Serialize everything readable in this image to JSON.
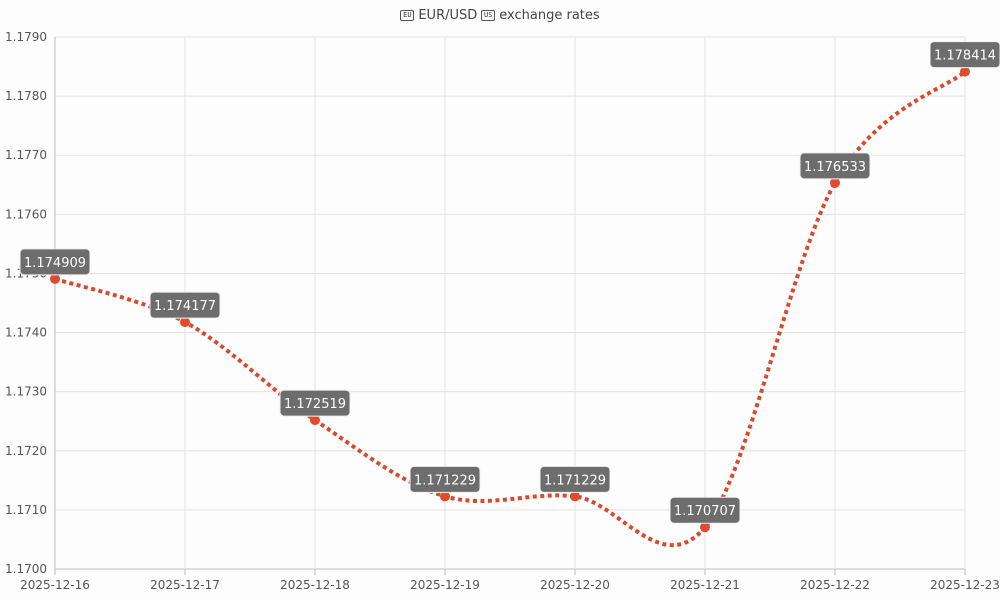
{
  "header": {
    "prefix_icon": "eu-flag-icon",
    "currency_pair": "EUR/USD",
    "suffix_icon": "us-flag-icon",
    "suffix_text": "exchange rates",
    "prefix_icon_glyph": "EU",
    "suffix_icon_glyph": "US"
  },
  "chart_data": {
    "type": "line",
    "title": "EUR/USD exchange rates",
    "x": [
      "2025-12-16",
      "2025-12-17",
      "2025-12-18",
      "2025-12-19",
      "2025-12-20",
      "2025-12-21",
      "2025-12-22",
      "2025-12-23"
    ],
    "series": [
      {
        "values": [
          1.174909,
          1.174177,
          1.172519,
          1.171229,
          1.171229,
          1.170707,
          1.176533,
          1.178414
        ],
        "data_labels": [
          "1.174909",
          "1.174177",
          "1.172519",
          "1.171229",
          "1.171229",
          "1.170707",
          "1.176533",
          "1.178414"
        ],
        "color": "#d84a2f",
        "line_style": "dotted",
        "smooth": true
      }
    ],
    "ylim": [
      1.17,
      1.179
    ],
    "yticks": [
      "1.1700",
      "1.1710",
      "1.1720",
      "1.1730",
      "1.1740",
      "1.1750",
      "1.1760",
      "1.1770",
      "1.1780",
      "1.1790"
    ],
    "grid": true,
    "legend": "none"
  }
}
